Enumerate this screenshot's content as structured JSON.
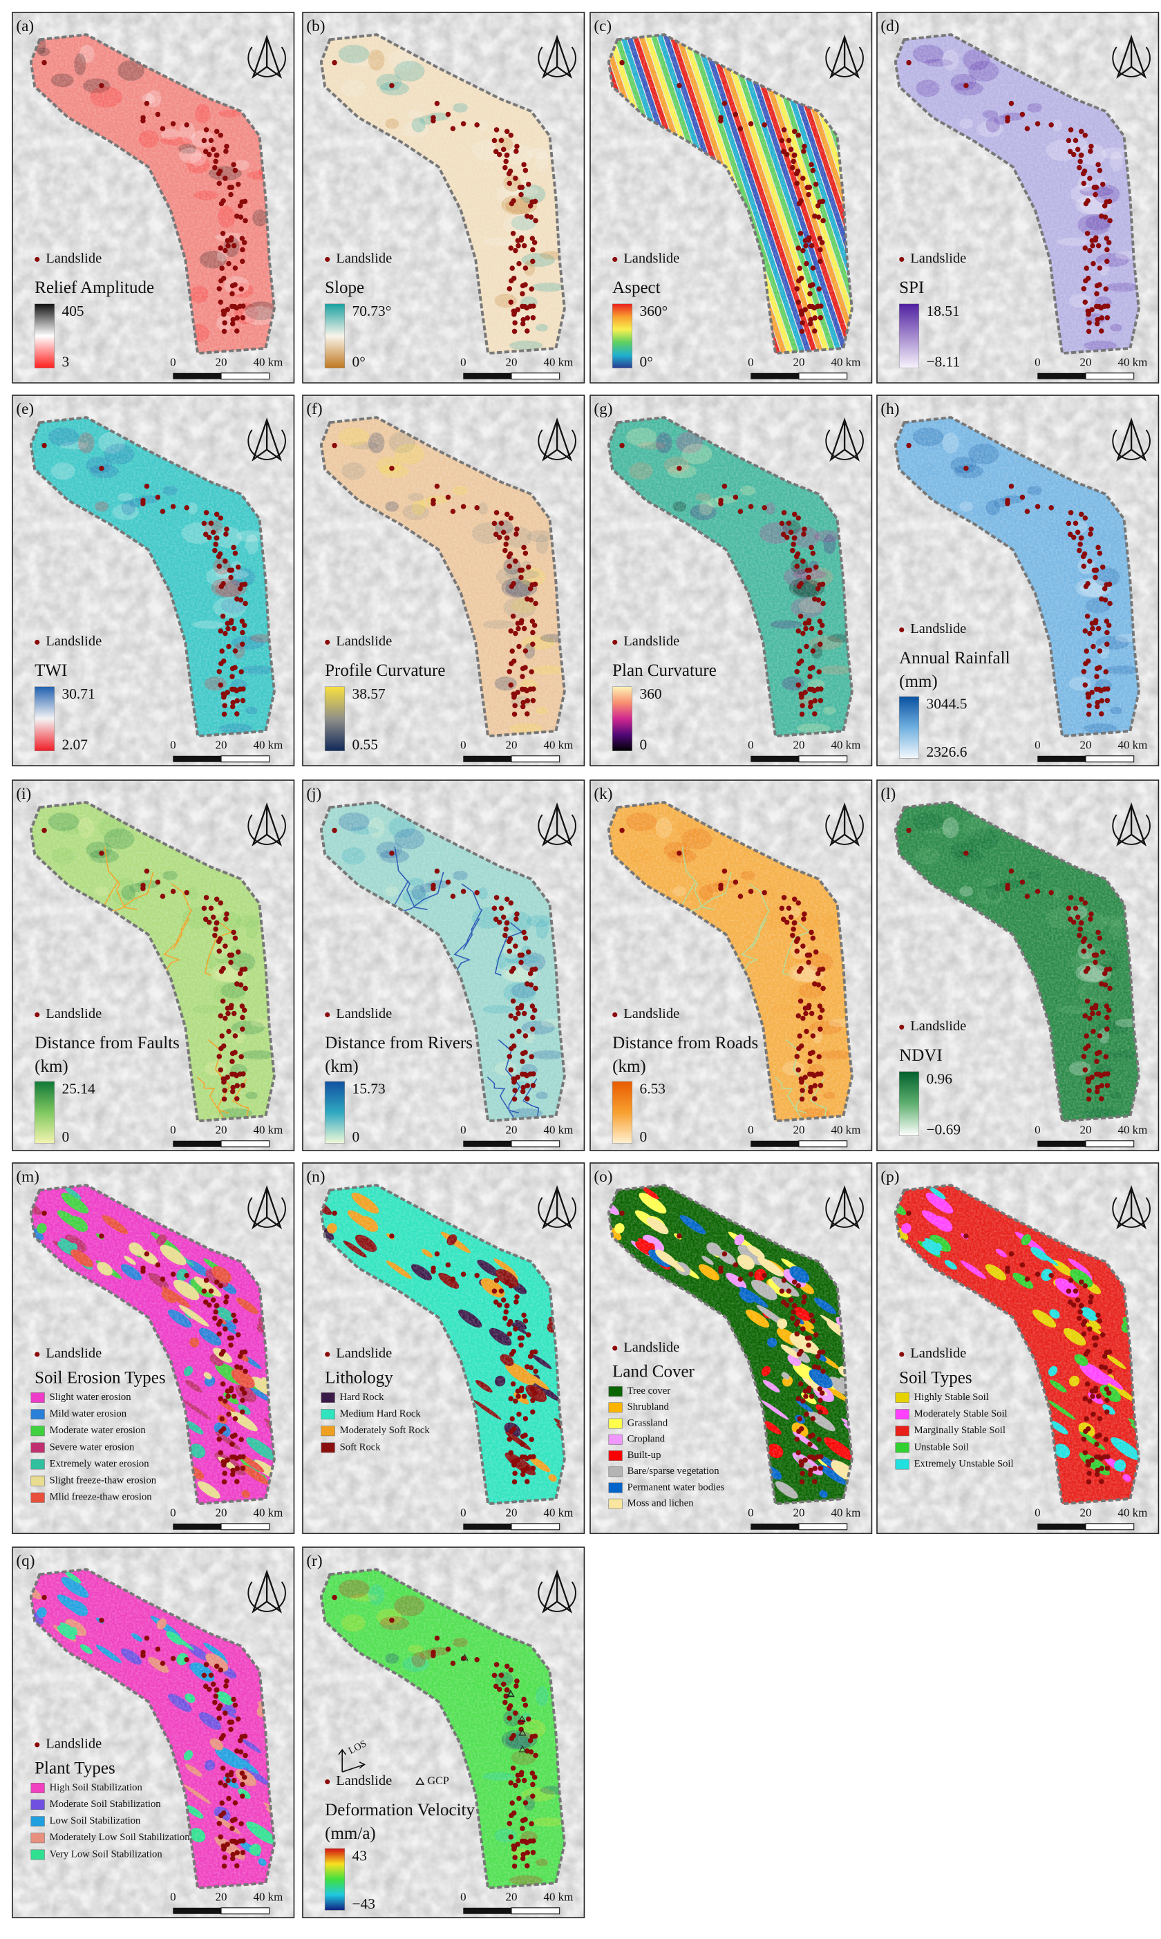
{
  "landslide_label": "Landslide",
  "scale_labels": [
    "0",
    "20",
    "40 km"
  ],
  "panels": [
    {
      "label": "(a)",
      "legend_title": [
        "Relief Amplitude"
      ],
      "legend": {
        "max": "405",
        "min": "3",
        "colors": [
          "#111111",
          "#ffffff",
          "#ff1e1e"
        ]
      },
      "map_color": "#f28a84"
    },
    {
      "label": "(b)",
      "legend_title": [
        "Slope"
      ],
      "legend": {
        "max": "70.73°",
        "min": "0°",
        "colors": [
          "#1aa0a0",
          "#f8f4ea",
          "#c07820"
        ]
      },
      "map_color": "#f1dfc0"
    },
    {
      "label": "(c)",
      "legend_title": [
        "Aspect"
      ],
      "legend": {
        "max": "360°",
        "min": "0°",
        "colors": [
          "#e8201c",
          "#f8a030",
          "#f8f050",
          "#60d060",
          "#20b0d0",
          "#283c90"
        ]
      },
      "map_color": [
        "#e8201c",
        "#f8a030",
        "#f8f050",
        "#60d060",
        "#20b0d0",
        "#3858c0"
      ]
    },
    {
      "label": "(d)",
      "legend_title": [
        "SPI"
      ],
      "legend": {
        "max": "18.51",
        "min": "−8.11",
        "colors": [
          "#5020a0",
          "#f8f4fc"
        ]
      },
      "map_color": "#b8b4e4"
    },
    {
      "label": "(e)",
      "legend_title": [
        "TWI"
      ],
      "legend": {
        "max": "30.71",
        "min": "2.07",
        "colors": [
          "#2060b0",
          "#f4f4f4",
          "#f01e28"
        ]
      },
      "map_color": "#40c8c8"
    },
    {
      "label": "(f)",
      "legend_title": [
        "Profile Curvature"
      ],
      "legend": {
        "max": "38.57",
        "min": "0.55",
        "colors": [
          "#f8e040",
          "#909088",
          "#10285a"
        ]
      },
      "map_color": "#ecc8a0"
    },
    {
      "label": "(g)",
      "legend_title": [
        "Plan Curvature"
      ],
      "legend": {
        "max": "360",
        "min": "0",
        "colors": [
          "#fcf4b8",
          "#f89070",
          "#d02890",
          "#500878",
          "#000000"
        ]
      },
      "map_color": "#48b8a0"
    },
    {
      "label": "(h)",
      "legend_title": [
        "Annual Rainfall",
        "(mm)"
      ],
      "legend": {
        "max": "3044.5",
        "min": "2326.6",
        "colors": [
          "#0850a0",
          "#70b0e0",
          "#f4f8fc"
        ]
      },
      "map_color": "#7ab8e4"
    },
    {
      "label": "(i)",
      "legend_title": [
        "Distance from Faults",
        "(km)"
      ],
      "legend": {
        "max": "25.14",
        "min": "0",
        "colors": [
          "#107838",
          "#80c860",
          "#f4f4b0"
        ]
      },
      "map_color": "#b0dc80",
      "line_color": "#f0a020"
    },
    {
      "label": "(j)",
      "legend_title": [
        "Distance from Rivers",
        "(km)"
      ],
      "legend": {
        "max": "15.73",
        "min": "0",
        "colors": [
          "#1050a0",
          "#30a8c0",
          "#f0f8d8"
        ]
      },
      "map_color": "#a0d8d0",
      "line_color": "#2050b0"
    },
    {
      "label": "(k)",
      "legend_title": [
        "Distance from Roads",
        "(km)"
      ],
      "legend": {
        "max": "6.53",
        "min": "0",
        "colors": [
          "#e85a00",
          "#f8a030",
          "#fff0d0"
        ]
      },
      "map_color": "#f6b048",
      "line_color": "#b0d890"
    },
    {
      "label": "(l)",
      "legend_title": [
        "NDVI"
      ],
      "legend": {
        "max": "0.96",
        "min": "−0.69",
        "colors": [
          "#00602c",
          "#60b070",
          "#ffffff"
        ]
      },
      "map_color": "#2a8a48"
    },
    {
      "label": "(m)",
      "legend_title": [
        "Soil Erosion Types"
      ],
      "map_color": "#ee3cc8",
      "classes": [
        {
          "label": "Slight water erosion",
          "color": "#ee3cc8"
        },
        {
          "label": "Mild water erosion",
          "color": "#2a80d8"
        },
        {
          "label": "Moderate water erosion",
          "color": "#40d040"
        },
        {
          "label": "Severe water erosion",
          "color": "#c03070"
        },
        {
          "label": "Extremely water erosion",
          "color": "#30c0a0"
        },
        {
          "label": "Slight freeze-thaw erosion",
          "color": "#e8dc90"
        },
        {
          "label": "Mlid freeze-thaw erosion",
          "color": "#e8503c"
        }
      ]
    },
    {
      "label": "(n)",
      "legend_title": [
        "Lithology"
      ],
      "map_color": "#30e4c0",
      "classes": [
        {
          "label": "Hard Rock",
          "color": "#3a1a48"
        },
        {
          "label": "Medium Hard Rock",
          "color": "#30e4c0"
        },
        {
          "label": "Moderately Soft Rock",
          "color": "#f0a020"
        },
        {
          "label": "Soft Rock",
          "color": "#8a1010"
        }
      ]
    },
    {
      "label": "(o)",
      "legend_title": [
        "Land Cover"
      ],
      "map_color": "#0a6400",
      "classes": [
        {
          "label": "Tree cover",
          "color": "#0a6400"
        },
        {
          "label": "Shrubland",
          "color": "#ffb400"
        },
        {
          "label": "Grassland",
          "color": "#ffff4c"
        },
        {
          "label": "Cropland",
          "color": "#f096ff"
        },
        {
          "label": "Built-up",
          "color": "#fa0000"
        },
        {
          "label": "Bare/sparse vegetation",
          "color": "#b4b4b4"
        },
        {
          "label": "Permanent water bodies",
          "color": "#0064c8"
        },
        {
          "label": "Moss and lichen",
          "color": "#fae6a0"
        }
      ]
    },
    {
      "label": "(p)",
      "legend_title": [
        "Soil Types"
      ],
      "map_color": "#e8201a",
      "classes": [
        {
          "label": "Highly Stable Soil",
          "color": "#e6d200"
        },
        {
          "label": "Moderately Stable Soil",
          "color": "#ff40ff"
        },
        {
          "label": "Marginally Stable Soil",
          "color": "#e8201a"
        },
        {
          "label": "Unstable Soil",
          "color": "#30d030"
        },
        {
          "label": "Extremely Unstable Soil",
          "color": "#20e0e0"
        }
      ]
    },
    {
      "label": "(q)",
      "legend_title": [
        "Plant Types"
      ],
      "map_color": "#f040c0",
      "classes": [
        {
          "label": "High Soil Stabilization",
          "color": "#f040c0"
        },
        {
          "label": "Moderate Soil Stabilization",
          "color": "#7050e0"
        },
        {
          "label": "Low Soil Stabilization",
          "color": "#20a0e0"
        },
        {
          "label": "Moderately Low Soil Stabilization",
          "color": "#e89080"
        },
        {
          "label": "Very Low Soil Stabilization",
          "color": "#30e090"
        }
      ]
    },
    {
      "label": "(r)",
      "legend_title": [
        "Deformation Velocity",
        "(mm/a)"
      ],
      "legend": {
        "max": "43",
        "min": "−43",
        "colors": [
          "#d01010",
          "#f8e020",
          "#40e040",
          "#20c8e0",
          "#102080"
        ]
      },
      "map_color": "#50e050",
      "gcp_label": "GCP",
      "los_label": "LOS"
    }
  ]
}
